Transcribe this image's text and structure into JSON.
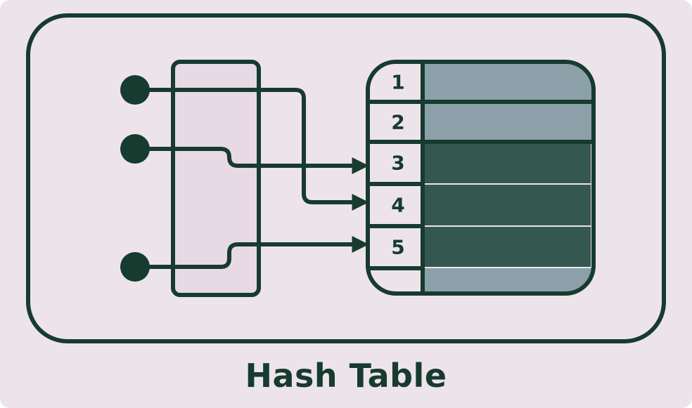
{
  "title": "Hash Table",
  "slots": [
    "1",
    "2",
    "3",
    "4",
    "5"
  ],
  "colors": {
    "background": "#ede4eb",
    "outline": "#173b2e",
    "hash_box_fill": "#e7dae4",
    "empty_bucket": "#8ba0a8",
    "filled_bucket": "#34584f",
    "bucket_divider": "#ede4eb"
  }
}
